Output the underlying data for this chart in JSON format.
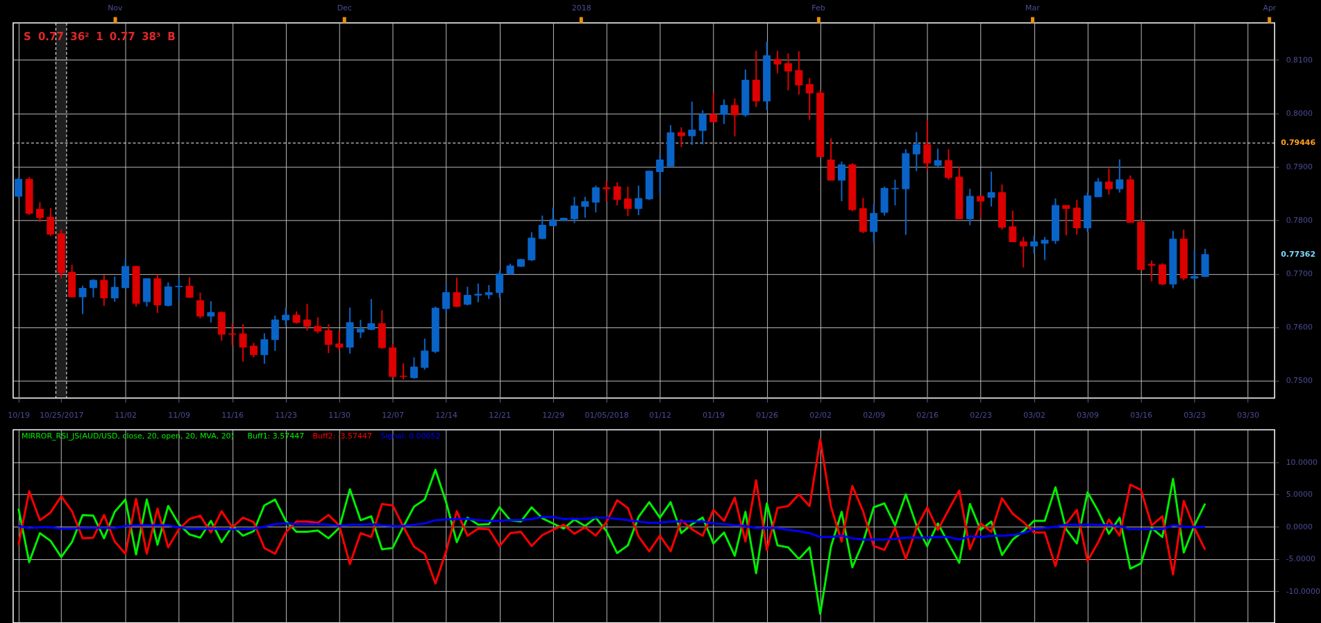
{
  "chart_data": [
    {
      "type": "candlestick",
      "categories": [
        "10/19",
        null,
        null,
        null,
        "10/25/2017",
        null,
        null,
        null,
        null,
        null,
        "11/02",
        null,
        null,
        null,
        null,
        "11/09",
        null,
        null,
        null,
        null,
        "11/16",
        null,
        null,
        null,
        null,
        "11/23",
        null,
        null,
        null,
        null,
        "11/30",
        null,
        null,
        null,
        null,
        "12/07",
        null,
        null,
        null,
        null,
        "12/14",
        null,
        null,
        null,
        null,
        "12/21",
        null,
        null,
        null,
        null,
        "12/29",
        null,
        null,
        null,
        null,
        "01/05/2018",
        null,
        null,
        null,
        null,
        "01/12",
        null,
        null,
        null,
        null,
        "01/19",
        null,
        null,
        null,
        null,
        "01/26",
        null,
        null,
        null,
        null,
        "02/02",
        null,
        null,
        null,
        null,
        "02/09",
        null,
        null,
        null,
        null,
        "02/16",
        null,
        null,
        null,
        null,
        "02/23",
        null,
        null,
        null,
        null,
        "03/02",
        null,
        null,
        null,
        null,
        "03/09",
        null,
        null,
        null,
        null,
        "03/16",
        null,
        null,
        null,
        null,
        "03/23",
        null,
        null,
        null,
        null,
        "03/30",
        null,
        null
      ],
      "ohlc": [
        [
          0.7845,
          0.788,
          0.7843,
          0.7877
        ],
        [
          0.7877,
          0.7881,
          0.781,
          0.7813
        ],
        [
          0.7821,
          0.7834,
          0.7797,
          0.7805
        ],
        [
          0.7806,
          0.7823,
          0.7771,
          0.7774
        ],
        [
          0.7775,
          0.7783,
          0.7691,
          0.7702
        ],
        [
          0.7703,
          0.7717,
          0.7656,
          0.7657
        ],
        [
          0.7657,
          0.7678,
          0.7625,
          0.7673
        ],
        [
          0.7674,
          0.769,
          0.7656,
          0.7688
        ],
        [
          0.7688,
          0.7698,
          0.764,
          0.7655
        ],
        [
          0.7655,
          0.7695,
          0.7648,
          0.7675
        ],
        [
          0.7674,
          0.7728,
          0.7673,
          0.7714
        ],
        [
          0.7714,
          0.7715,
          0.7639,
          0.7645
        ],
        [
          0.7648,
          0.7692,
          0.7639,
          0.7691
        ],
        [
          0.7691,
          0.7699,
          0.7627,
          0.7642
        ],
        [
          0.7641,
          0.7684,
          0.7639,
          0.7676
        ],
        [
          0.7676,
          0.7693,
          0.765,
          0.7677
        ],
        [
          0.7677,
          0.7694,
          0.7655,
          0.7656
        ],
        [
          0.765,
          0.7665,
          0.7617,
          0.7621
        ],
        [
          0.7621,
          0.7649,
          0.7609,
          0.7628
        ],
        [
          0.7628,
          0.763,
          0.7575,
          0.7587
        ],
        [
          0.7588,
          0.7607,
          0.7567,
          0.7587
        ],
        [
          0.7588,
          0.7606,
          0.7536,
          0.7563
        ],
        [
          0.7565,
          0.7571,
          0.7544,
          0.7549
        ],
        [
          0.7549,
          0.7589,
          0.7532,
          0.7577
        ],
        [
          0.7577,
          0.7622,
          0.7556,
          0.7614
        ],
        [
          0.7614,
          0.7637,
          0.7604,
          0.7623
        ],
        [
          0.7623,
          0.763,
          0.7607,
          0.7609
        ],
        [
          0.7614,
          0.7644,
          0.7594,
          0.7602
        ],
        [
          0.7602,
          0.7619,
          0.7589,
          0.7593
        ],
        [
          0.7594,
          0.7606,
          0.7552,
          0.7568
        ],
        [
          0.7569,
          0.7594,
          0.7557,
          0.7563
        ],
        [
          0.7563,
          0.7637,
          0.7551,
          0.7609
        ],
        [
          0.7591,
          0.7614,
          0.758,
          0.7597
        ],
        [
          0.7596,
          0.7653,
          0.7595,
          0.7607
        ],
        [
          0.7607,
          0.7632,
          0.756,
          0.7562
        ],
        [
          0.7562,
          0.7569,
          0.7507,
          0.7508
        ],
        [
          0.7509,
          0.7533,
          0.7503,
          0.7508
        ],
        [
          0.7506,
          0.7544,
          0.7504,
          0.7526
        ],
        [
          0.7525,
          0.7579,
          0.7521,
          0.7556
        ],
        [
          0.7555,
          0.7639,
          0.7552,
          0.7636
        ],
        [
          0.7635,
          0.7679,
          0.7627,
          0.7665
        ],
        [
          0.7665,
          0.7693,
          0.7638,
          0.7639
        ],
        [
          0.7643,
          0.7676,
          0.7641,
          0.766
        ],
        [
          0.766,
          0.7682,
          0.7647,
          0.7662
        ],
        [
          0.7661,
          0.7679,
          0.7653,
          0.7665
        ],
        [
          0.7665,
          0.7705,
          0.7655,
          0.77
        ],
        [
          0.77,
          0.7719,
          0.7699,
          0.7715
        ],
        [
          0.7714,
          0.7728,
          0.7713,
          0.7727
        ],
        [
          0.7726,
          0.7778,
          0.7724,
          0.7767
        ],
        [
          0.7766,
          0.7809,
          0.7765,
          0.7791
        ],
        [
          0.779,
          0.7824,
          0.779,
          0.7801
        ],
        [
          0.78,
          0.7805,
          0.7799,
          0.7804
        ],
        [
          0.7803,
          0.7844,
          0.7795,
          0.7827
        ],
        [
          0.7826,
          0.7844,
          0.7805,
          0.7835
        ],
        [
          0.7834,
          0.7865,
          0.7815,
          0.7861
        ],
        [
          0.7861,
          0.7874,
          0.7835,
          0.7859
        ],
        [
          0.7863,
          0.7871,
          0.7828,
          0.7839
        ],
        [
          0.784,
          0.7863,
          0.7808,
          0.7822
        ],
        [
          0.7822,
          0.7865,
          0.781,
          0.7841
        ],
        [
          0.784,
          0.7893,
          0.7838,
          0.7892
        ],
        [
          0.7891,
          0.7924,
          0.7848,
          0.7913
        ],
        [
          0.7901,
          0.7978,
          0.7901,
          0.7964
        ],
        [
          0.7964,
          0.7974,
          0.7937,
          0.7958
        ],
        [
          0.7958,
          0.8022,
          0.7941,
          0.7969
        ],
        [
          0.7968,
          0.8006,
          0.7942,
          0.7998
        ],
        [
          0.7998,
          0.8038,
          0.7984,
          0.7984
        ],
        [
          0.7998,
          0.8026,
          0.798,
          0.8015
        ],
        [
          0.8015,
          0.8028,
          0.7957,
          0.7997
        ],
        [
          0.7997,
          0.8082,
          0.7994,
          0.8062
        ],
        [
          0.8062,
          0.8117,
          0.8012,
          0.8023
        ],
        [
          0.8023,
          0.8134,
          0.8006,
          0.8108
        ],
        [
          0.8101,
          0.8117,
          0.8075,
          0.8092
        ],
        [
          0.8093,
          0.8112,
          0.8043,
          0.8079
        ],
        [
          0.808,
          0.8116,
          0.8035,
          0.8053
        ],
        [
          0.8054,
          0.8066,
          0.7988,
          0.8038
        ],
        [
          0.8038,
          0.8044,
          0.7919,
          0.7919
        ],
        [
          0.7913,
          0.7953,
          0.7875,
          0.7875
        ],
        [
          0.7875,
          0.791,
          0.7836,
          0.7904
        ],
        [
          0.7904,
          0.7907,
          0.7817,
          0.782
        ],
        [
          0.7822,
          0.7842,
          0.7776,
          0.7779
        ],
        [
          0.7779,
          0.783,
          0.7759,
          0.7813
        ],
        [
          0.7815,
          0.7863,
          0.7809,
          0.786
        ],
        [
          0.7859,
          0.7876,
          0.7828,
          0.786
        ],
        [
          0.7859,
          0.7933,
          0.7773,
          0.7925
        ],
        [
          0.7924,
          0.7965,
          0.7892,
          0.7942
        ],
        [
          0.7942,
          0.7987,
          0.7893,
          0.7907
        ],
        [
          0.7903,
          0.7934,
          0.7899,
          0.7912
        ],
        [
          0.7912,
          0.7933,
          0.7876,
          0.788
        ],
        [
          0.7881,
          0.79,
          0.7803,
          0.7803
        ],
        [
          0.7803,
          0.7859,
          0.7791,
          0.7845
        ],
        [
          0.7845,
          0.7846,
          0.7804,
          0.7836
        ],
        [
          0.7843,
          0.7891,
          0.7826,
          0.7852
        ],
        [
          0.7852,
          0.7867,
          0.7783,
          0.7787
        ],
        [
          0.7788,
          0.7818,
          0.776,
          0.776
        ],
        [
          0.776,
          0.7769,
          0.7712,
          0.7752
        ],
        [
          0.7752,
          0.7772,
          0.7738,
          0.776
        ],
        [
          0.7757,
          0.7769,
          0.7726,
          0.7763
        ],
        [
          0.7762,
          0.7841,
          0.7756,
          0.7828
        ],
        [
          0.7828,
          0.7828,
          0.7772,
          0.7822
        ],
        [
          0.7823,
          0.7838,
          0.7773,
          0.7786
        ],
        [
          0.7786,
          0.7852,
          0.7778,
          0.7846
        ],
        [
          0.7844,
          0.7879,
          0.7844,
          0.7872
        ],
        [
          0.7872,
          0.7897,
          0.7848,
          0.7859
        ],
        [
          0.7859,
          0.7914,
          0.7852,
          0.7876
        ],
        [
          0.7876,
          0.7884,
          0.7796,
          0.7796
        ],
        [
          0.7797,
          0.7802,
          0.7708,
          0.7708
        ],
        [
          0.7718,
          0.7725,
          0.7686,
          0.7716
        ],
        [
          0.7717,
          0.772,
          0.7679,
          0.7681
        ],
        [
          0.7681,
          0.778,
          0.7673,
          0.7765
        ],
        [
          0.7765,
          0.7783,
          0.7688,
          0.7692
        ],
        [
          0.7692,
          0.7744,
          0.7687,
          0.7695
        ],
        [
          0.7695,
          0.7747,
          0.7695,
          0.77362
        ],
        null,
        null,
        null,
        null,
        null,
        null
      ],
      "colors": [
        "#0a64c8",
        "#dc0000",
        "#dc0000",
        "#dc0000",
        "#dc0000",
        "#dc0000",
        "#0a64c8",
        "#0a64c8",
        "#dc0000",
        "#0a64c8",
        "#0a64c8",
        "#dc0000",
        "#0a64c8",
        "#dc0000",
        "#0a64c8",
        "#0a64c8",
        "#dc0000",
        "#dc0000",
        "#0a64c8",
        "#dc0000",
        "#dc0000",
        "#dc0000",
        "#dc0000",
        "#0a64c8",
        "#0a64c8",
        "#0a64c8",
        "#dc0000",
        "#dc0000",
        "#dc0000",
        "#dc0000",
        "#dc0000",
        "#0a64c8",
        "#0a64c8",
        "#0a64c8",
        "#dc0000",
        "#dc0000",
        "#dc0000",
        "#0a64c8",
        "#0a64c8",
        "#0a64c8",
        "#0a64c8",
        "#dc0000",
        "#0a64c8",
        "#0a64c8",
        "#0a64c8",
        "#0a64c8",
        "#0a64c8",
        "#0a64c8",
        "#0a64c8",
        "#0a64c8",
        "#0a64c8",
        "#0a64c8",
        "#0a64c8",
        "#0a64c8",
        "#0a64c8",
        "#dc0000",
        "#dc0000",
        "#dc0000",
        "#0a64c8",
        "#0a64c8",
        "#0a64c8",
        "#0a64c8",
        "#dc0000",
        "#0a64c8",
        "#0a64c8",
        "#dc0000",
        "#0a64c8",
        "#dc0000",
        "#0a64c8",
        "#dc0000",
        "#0a64c8",
        "#dc0000",
        "#dc0000",
        "#dc0000",
        "#dc0000",
        "#dc0000",
        "#dc0000",
        "#0a64c8",
        "#dc0000",
        "#dc0000",
        "#0a64c8",
        "#0a64c8",
        "#0a64c8",
        "#0a64c8",
        "#0a64c8",
        "#dc0000",
        "#0a64c8",
        "#dc0000",
        "#dc0000",
        "#0a64c8",
        "#dc0000",
        "#0a64c8",
        "#dc0000",
        "#dc0000",
        "#dc0000",
        "#0a64c8",
        "#0a64c8",
        "#0a64c8",
        "#dc0000",
        "#dc0000",
        "#0a64c8",
        "#0a64c8",
        "#dc0000",
        "#0a64c8",
        "#dc0000",
        "#dc0000",
        "#dc0000",
        "#dc0000",
        "#0a64c8",
        "#dc0000",
        "#0a64c8",
        "#0a64c8",
        null,
        null,
        null,
        null,
        null,
        null
      ],
      "ylim": [
        0.7468,
        0.8169
      ],
      "yticks": [
        {
          "value": 0.75,
          "label": "0.7500"
        },
        {
          "value": 0.76,
          "label": "0.7600"
        },
        {
          "value": 0.77,
          "label": "0.7700"
        },
        {
          "value": 0.78,
          "label": "0.7800"
        },
        {
          "value": 0.79,
          "label": "0.7900"
        },
        {
          "value": 0.8,
          "label": "0.8000"
        },
        {
          "value": 0.81,
          "label": "0.8100"
        }
      ],
      "x2lim": [
        "2017-10-18T17:00",
        "2018-04-01T17:00"
      ],
      "x2ticks": [
        {
          "value": "2017-11-01",
          "label": "Nov"
        },
        {
          "value": "2017-12-01",
          "label": "Dec"
        },
        {
          "value": "2018-01-01",
          "label": "2018"
        },
        {
          "value": "2018-02-01",
          "label": "Feb"
        },
        {
          "value": "2018-03-01",
          "label": "Mar"
        },
        {
          "value": "2018-04-01",
          "label": "Apr"
        }
      ],
      "grid": true,
      "ref_lines": [
        {
          "axis": "y",
          "value": 0.79446,
          "label": "0.79446",
          "color": "#ffffff",
          "line_style": "dashed"
        }
      ],
      "bands": [
        {
          "axis": "x",
          "from": "10/25/2017",
          "to": "10/25/2017",
          "color": "#ffffff"
        }
      ],
      "annotations": [
        "S",
        "0.77",
        "36²",
        "1",
        "0.77",
        "38³",
        "B",
        "0.77362"
      ]
    },
    {
      "type": "line",
      "title": "MIRROR_RSI_JS(AUD/USD, close, 20, open, 20, MVA, 20)",
      "categories": [
        null,
        null,
        null,
        null,
        null,
        null,
        null,
        null,
        null,
        null,
        null,
        null,
        null,
        null,
        null,
        null,
        null,
        null,
        null,
        null,
        null,
        null,
        null,
        null,
        null,
        null,
        null,
        null,
        null,
        null,
        null,
        null,
        null,
        null,
        null,
        null,
        null,
        null,
        null,
        null,
        null,
        null,
        null,
        null,
        null,
        null,
        null,
        null,
        null,
        null,
        null,
        null,
        null,
        null,
        null,
        null,
        null,
        null,
        null,
        null,
        null,
        null,
        null,
        null,
        null,
        null,
        null,
        null,
        null,
        null,
        null,
        null,
        null,
        null,
        null,
        null,
        null,
        null,
        null,
        null,
        null,
        null,
        null,
        null,
        null,
        null,
        null,
        null,
        null,
        null,
        null,
        null,
        null,
        null,
        null,
        null,
        null,
        null,
        null,
        null,
        null,
        null,
        null,
        null,
        null,
        null,
        null,
        null,
        null,
        null,
        null,
        null,
        null,
        null,
        null,
        null,
        null,
        null
      ],
      "series": [
        {
          "name": "Buff1: 3.57447",
          "color": "#00ee00",
          "values": [
            2.8,
            -5.5,
            -1.0,
            -2.2,
            -4.7,
            -2.4,
            1.8,
            1.7,
            -1.8,
            2.3,
            4.2,
            -4.3,
            4.2,
            -2.8,
            3.2,
            0.4,
            -1.2,
            -1.7,
            0.9,
            -2.4,
            0.1,
            -1.4,
            -0.7,
            3.3,
            4.2,
            0.9,
            -0.8,
            -0.8,
            -0.6,
            -1.8,
            -0.2,
            5.8,
            1.0,
            1.6,
            -3.5,
            -3.3,
            0.0,
            3.1,
            4.2,
            8.8,
            3.8,
            -2.4,
            1.4,
            0.3,
            0.4,
            3.0,
            1.0,
            0.8,
            3.0,
            1.3,
            0.5,
            -0.3,
            1.1,
            0.1,
            1.4,
            -0.7,
            -4.1,
            -2.9,
            1.5,
            3.8,
            1.4,
            3.8,
            -1.0,
            0.4,
            1.4,
            -2.6,
            -0.9,
            -4.5,
            2.3,
            -7.2,
            3.6,
            -2.9,
            -3.2,
            -5.0,
            -3.2,
            -13.5,
            -3.1,
            2.3,
            -6.3,
            -2.4,
            3.0,
            3.6,
            0.2,
            5.0,
            0.2,
            -3.0,
            0.5,
            -2.6,
            -5.6,
            3.5,
            -0.5,
            0.8,
            -4.4,
            -2.0,
            -0.7,
            0.9,
            0.9,
            6.1,
            -0.4,
            -2.6,
            5.3,
            2.4,
            -1.1,
            1.4,
            -6.5,
            -5.7,
            -0.2,
            -1.6,
            7.4,
            -4.0,
            0.2,
            3.57447,
            null,
            null,
            null,
            null,
            null,
            null
          ]
        },
        {
          "name": "Buff2: -3.57447",
          "color": "#ff0000",
          "values": [
            -2.8,
            5.5,
            1.0,
            2.2,
            4.7,
            2.4,
            -1.8,
            -1.7,
            1.8,
            -2.3,
            -4.2,
            4.3,
            -4.2,
            2.8,
            -3.2,
            -0.4,
            1.2,
            1.7,
            -0.9,
            2.4,
            -0.1,
            1.4,
            0.7,
            -3.3,
            -4.2,
            -0.9,
            0.8,
            0.8,
            0.6,
            1.8,
            0.2,
            -5.8,
            -1.0,
            -1.6,
            3.5,
            3.3,
            0.0,
            -3.1,
            -4.2,
            -8.8,
            -3.8,
            2.4,
            -1.4,
            -0.3,
            -0.4,
            -3.0,
            -1.0,
            -0.8,
            -3.0,
            -1.3,
            -0.5,
            0.3,
            -1.1,
            -0.1,
            -1.4,
            0.7,
            4.1,
            2.9,
            -1.5,
            -3.8,
            -1.4,
            -3.8,
            1.0,
            -0.4,
            -1.4,
            2.6,
            0.9,
            4.5,
            -2.3,
            7.2,
            -3.6,
            2.9,
            3.2,
            5.0,
            3.2,
            13.5,
            3.1,
            -2.3,
            6.3,
            2.4,
            -3.0,
            -3.6,
            -0.2,
            -5.0,
            -0.2,
            3.0,
            -0.5,
            2.6,
            5.6,
            -3.5,
            0.5,
            -0.8,
            4.4,
            2.0,
            0.7,
            -0.9,
            -0.9,
            -6.1,
            0.4,
            2.6,
            -5.3,
            -2.4,
            1.1,
            -1.4,
            6.5,
            5.7,
            0.2,
            1.6,
            -7.4,
            4.0,
            -0.2,
            -3.57447,
            null,
            null,
            null,
            null,
            null,
            null
          ]
        },
        {
          "name": "Signal: 0.00052",
          "color": "#0000ff",
          "values": [
            0.1,
            -0.2,
            -0.1,
            -0.1,
            -0.3,
            -0.3,
            -0.2,
            -0.2,
            -0.2,
            -0.2,
            0.1,
            0.2,
            0.2,
            0.2,
            0.2,
            -0.1,
            -0.3,
            -0.3,
            -0.3,
            -0.4,
            -0.4,
            -0.4,
            -0.3,
            0.0,
            0.4,
            0.5,
            0.4,
            0.4,
            0.4,
            0.3,
            0.1,
            0.3,
            0.3,
            0.4,
            0.2,
            0.1,
            0.1,
            0.3,
            0.5,
            1.0,
            1.1,
            1.2,
            1.2,
            1.0,
            0.9,
            0.9,
            1.0,
            1.0,
            1.2,
            1.5,
            1.5,
            1.2,
            1.2,
            1.2,
            1.4,
            1.4,
            1.2,
            1.0,
            0.8,
            0.6,
            0.6,
            0.8,
            0.8,
            0.8,
            0.8,
            0.5,
            0.4,
            0.2,
            0.1,
            -0.2,
            -0.2,
            -0.2,
            -0.5,
            -0.7,
            -1.0,
            -1.6,
            -1.6,
            -1.4,
            -1.8,
            -2.0,
            -2.0,
            -2.0,
            -1.9,
            -1.7,
            -1.7,
            -1.7,
            -1.6,
            -1.6,
            -2.0,
            -1.5,
            -1.6,
            -1.4,
            -1.4,
            -1.3,
            -1.0,
            -0.4,
            -0.2,
            0.0,
            0.3,
            0.3,
            0.3,
            0.3,
            0.2,
            0.1,
            -0.4,
            -0.4,
            -0.4,
            -0.4,
            0.2,
            0.0,
            -0.1,
            0.00052,
            null,
            null,
            null,
            null,
            null,
            null
          ]
        }
      ],
      "ylim": [
        -14.9,
        15.0
      ],
      "yticks": [
        {
          "value": -10,
          "label": "-10.0000"
        },
        {
          "value": -5,
          "label": "-5.0000"
        },
        {
          "value": 0,
          "label": "0.0000"
        },
        {
          "value": 5,
          "label": "5.0000"
        },
        {
          "value": 10,
          "label": "10.0000"
        }
      ],
      "grid": true,
      "legend": "top left",
      "tick_labels": "y"
    }
  ]
}
